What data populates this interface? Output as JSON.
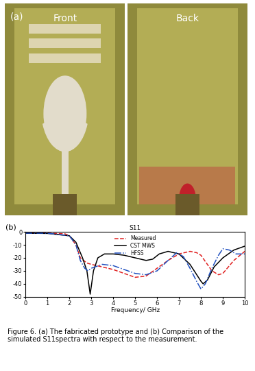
{
  "panel_a": {
    "label": "(a)",
    "views": [
      "Front",
      "Back"
    ]
  },
  "chart_data": {
    "type": "line",
    "panel_label": "(b)",
    "title": "S11",
    "x_label": "Frequency/ GHz",
    "xlim": [
      0,
      10
    ],
    "xticks": [
      0,
      1,
      2,
      3,
      4,
      5,
      6,
      7,
      8,
      9,
      10
    ],
    "ylim": [
      -50,
      0
    ],
    "yticks": [
      0,
      -10,
      -20,
      -30,
      -40,
      -50
    ],
    "legend": "upper center",
    "series": [
      {
        "name": "Measured",
        "color": "#e02020",
        "line_style": "dashed",
        "x": [
          0,
          1,
          1.8,
          2,
          2.3,
          2.5,
          2.8,
          3,
          3.5,
          4,
          4.5,
          5,
          5.5,
          6,
          6.5,
          7,
          7.5,
          7.8,
          8,
          8.5,
          8.8,
          9,
          9.5,
          10
        ],
        "values": [
          -1,
          -1,
          -1.5,
          -3,
          -10,
          -20,
          -24,
          -25,
          -27,
          -29,
          -32,
          -35,
          -34,
          -28,
          -22,
          -17,
          -15,
          -16,
          -18,
          -30,
          -33,
          -32,
          -22,
          -15
        ]
      },
      {
        "name": "CST MWS",
        "color": "#000000",
        "line_style": "solid",
        "x": [
          0,
          1,
          2,
          2.3,
          2.6,
          2.8,
          2.95,
          3.1,
          3.3,
          3.6,
          4,
          4.5,
          5,
          5.5,
          5.8,
          6.1,
          6.5,
          7,
          7.5,
          8,
          8.1,
          8.3,
          8.6,
          9,
          9.5,
          10
        ],
        "values": [
          -1,
          -1.2,
          -3,
          -8,
          -20,
          -30,
          -48,
          -30,
          -20,
          -17,
          -17,
          -18,
          -20,
          -22,
          -21,
          -17,
          -15,
          -17,
          -25,
          -38,
          -40,
          -37,
          -27,
          -20,
          -14,
          -11
        ]
      },
      {
        "name": "HFSS",
        "color": "#2050c0",
        "line_style": "dashdot",
        "x": [
          0,
          1,
          2,
          2.3,
          2.5,
          2.7,
          2.85,
          3,
          3.5,
          4,
          4.5,
          5,
          5.5,
          6,
          6.5,
          6.9,
          7.2,
          7.5,
          7.8,
          8,
          8.2,
          8.5,
          8.8,
          9,
          9.3,
          9.6,
          10
        ],
        "values": [
          -1,
          -1,
          -3,
          -10,
          -22,
          -28,
          -30,
          -28,
          -25,
          -26,
          -29,
          -32,
          -33,
          -30,
          -22,
          -16,
          -19,
          -28,
          -38,
          -44,
          -40,
          -28,
          -18,
          -13,
          -14,
          -17,
          -17
        ]
      }
    ]
  },
  "caption": "Figure 6. (a) The fabricated prototype and (b) Comparison of the simulated S11spectra with respect to the measurement."
}
